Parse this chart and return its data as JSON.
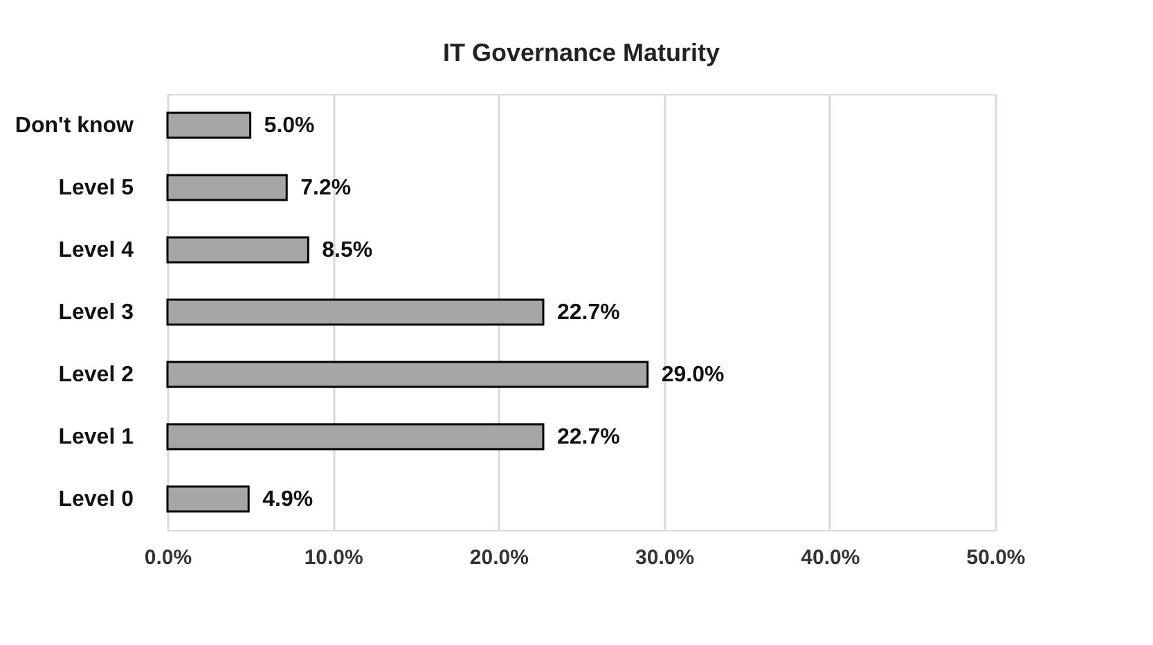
{
  "chart_data": {
    "type": "bar",
    "orientation": "horizontal",
    "title": "IT Governance Maturity",
    "categories": [
      "Don't know",
      "Level 5",
      "Level 4",
      "Level 3",
      "Level 2",
      "Level 1",
      "Level 0"
    ],
    "values": [
      5.0,
      7.2,
      8.5,
      22.7,
      29.0,
      22.7,
      4.9
    ],
    "value_labels": [
      "5.0%",
      "7.2%",
      "8.5%",
      "22.7%",
      "29.0%",
      "22.7%",
      "4.9%"
    ],
    "color": "#a6a6a6",
    "xlim": [
      0,
      50
    ],
    "xticks": [
      {
        "value": 0,
        "label": "0.0%"
      },
      {
        "value": 10,
        "label": "10.0%"
      },
      {
        "value": 20,
        "label": "20.0%"
      },
      {
        "value": 30,
        "label": "30.0%"
      },
      {
        "value": 40,
        "label": "40.0%"
      },
      {
        "value": 50,
        "label": "50.0%"
      }
    ],
    "grid": "x"
  }
}
